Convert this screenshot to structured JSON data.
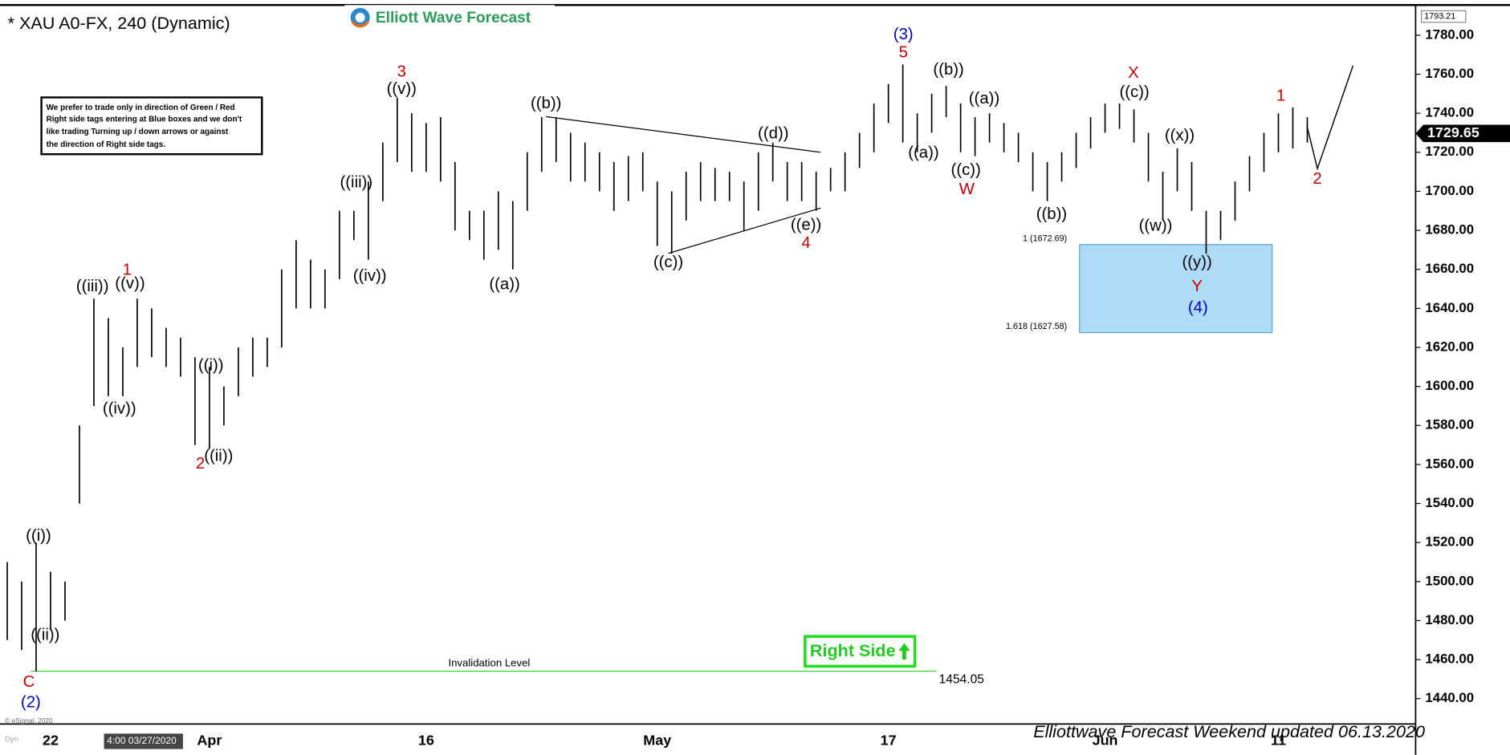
{
  "chart_data": {
    "type": "hl",
    "title": "* XAU A0-FX, 240 (Dynamic)",
    "logo": "Elliott Wave Forecast",
    "note": [
      "We prefer to trade only in direction of Green / Red",
      "Right side tags entering at Blue boxes and we don't",
      "like trading Turning up / down arrows or against",
      "the direction of Right side tags."
    ],
    "footer": "Elliottwave Forecast Weekend updated 06.13.2020",
    "copyright": "© eSignal, 2020",
    "cursor_label": "4:00 03/27/2020",
    "corner_label": "Dyn",
    "badge": "Right Side",
    "bar_color": "#000000",
    "categories": [
      null,
      null,
      null,
      "22",
      null,
      null,
      null,
      null,
      null,
      null,
      null,
      null,
      null,
      null,
      "Apr",
      null,
      null,
      null,
      null,
      null,
      null,
      null,
      null,
      null,
      null,
      null,
      null,
      null,
      null,
      "16",
      null,
      null,
      null,
      null,
      null,
      null,
      null,
      null,
      null,
      null,
      null,
      null,
      null,
      null,
      null,
      "May",
      null,
      null,
      null,
      null,
      null,
      null,
      null,
      null,
      null,
      null,
      null,
      null,
      null,
      null,
      null,
      "17",
      null,
      null,
      null,
      null,
      null,
      null,
      null,
      null,
      null,
      null,
      null,
      null,
      null,
      null,
      "Jun",
      null,
      null,
      null,
      null,
      null,
      null,
      null,
      null,
      null,
      null,
      null,
      "11",
      null,
      null,
      null,
      null,
      null,
      null,
      null,
      null,
      null
    ],
    "high": [
      1510,
      1500,
      1520,
      1505,
      1500,
      1580,
      1645,
      1635,
      1620,
      1645,
      1640,
      1630,
      1625,
      1615,
      1610,
      1600,
      1620,
      1625,
      1625,
      1660,
      1675,
      1665,
      1660,
      1690,
      1690,
      1705,
      1725,
      1748,
      1740,
      1735,
      1738,
      1715,
      1690,
      1690,
      1700,
      1695,
      1720,
      1738,
      1738,
      1730,
      1725,
      1720,
      1715,
      1718,
      1720,
      1705,
      1700,
      1710,
      1715,
      1712,
      1710,
      1705,
      1720,
      1725,
      1715,
      1715,
      1710,
      1712,
      1720,
      1730,
      1745,
      1755,
      1765,
      1740,
      1750,
      1754,
      1745,
      1738,
      1740,
      1735,
      1730,
      1720,
      1715,
      1720,
      1730,
      1738,
      1745,
      1745,
      1742,
      1730,
      1710,
      1722,
      1715,
      1690,
      1690,
      1705,
      1718,
      1730,
      1740,
      1743,
      1738,
      null,
      null,
      null,
      null,
      null,
      null,
      null
    ],
    "low": [
      1470,
      1465,
      1454,
      1475,
      1480,
      1540,
      1590,
      1595,
      1595,
      1610,
      1615,
      1610,
      1605,
      1570,
      1568,
      1580,
      1595,
      1605,
      1610,
      1620,
      1640,
      1640,
      1640,
      1655,
      1675,
      1665,
      1695,
      1715,
      1710,
      1710,
      1705,
      1680,
      1675,
      1665,
      1670,
      1660,
      1690,
      1710,
      1715,
      1705,
      1705,
      1700,
      1690,
      1695,
      1700,
      1672,
      1668,
      1685,
      1695,
      1695,
      1695,
      1680,
      1690,
      1705,
      1695,
      1695,
      1690,
      1700,
      1700,
      1712,
      1720,
      1735,
      1725,
      1720,
      1730,
      1738,
      1720,
      1718,
      1725,
      1720,
      1715,
      1700,
      1695,
      1705,
      1712,
      1722,
      1730,
      1732,
      1725,
      1705,
      1685,
      1700,
      1690,
      1668,
      1675,
      1685,
      1700,
      1710,
      1720,
      1722,
      1725,
      null,
      null,
      null,
      null,
      null,
      null,
      null
    ],
    "ylim": [
      1427,
      1794
    ],
    "yticks": [
      {
        "value": 1440,
        "label": "1440.00"
      },
      {
        "value": 1460,
        "label": "1460.00"
      },
      {
        "value": 1480,
        "label": "1480.00"
      },
      {
        "value": 1500,
        "label": "1500.00"
      },
      {
        "value": 1520,
        "label": "1520.00"
      },
      {
        "value": 1540,
        "label": "1540.00"
      },
      {
        "value": 1560,
        "label": "1560.00"
      },
      {
        "value": 1580,
        "label": "1580.00"
      },
      {
        "value": 1600,
        "label": "1600.00"
      },
      {
        "value": 1620,
        "label": "1620.00"
      },
      {
        "value": 1640,
        "label": "1640.00"
      },
      {
        "value": 1660,
        "label": "1660.00"
      },
      {
        "value": 1680,
        "label": "1680.00"
      },
      {
        "value": 1700,
        "label": "1700.00"
      },
      {
        "value": 1720,
        "label": "1720.00"
      },
      {
        "value": 1740,
        "label": "1740.00"
      },
      {
        "value": 1760,
        "label": "1760.00"
      },
      {
        "value": 1780,
        "label": "1780.00"
      }
    ],
    "top_value": 1793.21,
    "current_price": 1729.65,
    "invalidation": {
      "label": "Invalidation Level",
      "value": 1454.05,
      "color": "#33cc33"
    },
    "fib_box": {
      "color": "#aedcf8",
      "levels": [
        {
          "value": 1672.69,
          "label": "1 (1672.69)"
        },
        {
          "value": 1627.58,
          "label": "1.618 (1627.58)"
        }
      ]
    },
    "annotations": [
      {
        "text": "((i))",
        "color": "#000000"
      },
      {
        "text": "((ii))",
        "color": "#000000"
      },
      {
        "text": "C",
        "color": "#d00000"
      },
      {
        "text": "(2)",
        "color": "#0000c0"
      },
      {
        "text": "((iii))",
        "color": "#000000"
      },
      {
        "text": "((v))",
        "color": "#000000"
      },
      {
        "text": "1",
        "color": "#d00000"
      },
      {
        "text": "((iv))",
        "color": "#000000"
      },
      {
        "text": "((i))",
        "color": "#000000"
      },
      {
        "text": "((ii))",
        "color": "#000000"
      },
      {
        "text": "2",
        "color": "#d00000"
      },
      {
        "text": "((iii))",
        "color": "#000000"
      },
      {
        "text": "((iv))",
        "color": "#000000"
      },
      {
        "text": "3",
        "color": "#d00000"
      },
      {
        "text": "((v))",
        "color": "#000000"
      },
      {
        "text": "((b))",
        "color": "#000000"
      },
      {
        "text": "((a))",
        "color": "#000000"
      },
      {
        "text": "((c))",
        "color": "#000000"
      },
      {
        "text": "((d))",
        "color": "#000000"
      },
      {
        "text": "((e))",
        "color": "#000000"
      },
      {
        "text": "4",
        "color": "#d00000"
      },
      {
        "text": "(3)",
        "color": "#0000c0"
      },
      {
        "text": "5",
        "color": "#d00000"
      },
      {
        "text": "((b))",
        "color": "#000000"
      },
      {
        "text": "((a))",
        "color": "#000000"
      },
      {
        "text": "((a))",
        "color": "#000000"
      },
      {
        "text": "((c))",
        "color": "#000000"
      },
      {
        "text": "W",
        "color": "#d00000"
      },
      {
        "text": "((b))",
        "color": "#000000"
      },
      {
        "text": "X",
        "color": "#d00000"
      },
      {
        "text": "((c))",
        "color": "#000000"
      },
      {
        "text": "((x))",
        "color": "#000000"
      },
      {
        "text": "((w))",
        "color": "#000000"
      },
      {
        "text": "((y))",
        "color": "#000000"
      },
      {
        "text": "Y",
        "color": "#d00000"
      },
      {
        "text": "(4)",
        "color": "#0000c0"
      },
      {
        "text": "1",
        "color": "#d00000"
      },
      {
        "text": "2",
        "color": "#d00000"
      }
    ]
  }
}
